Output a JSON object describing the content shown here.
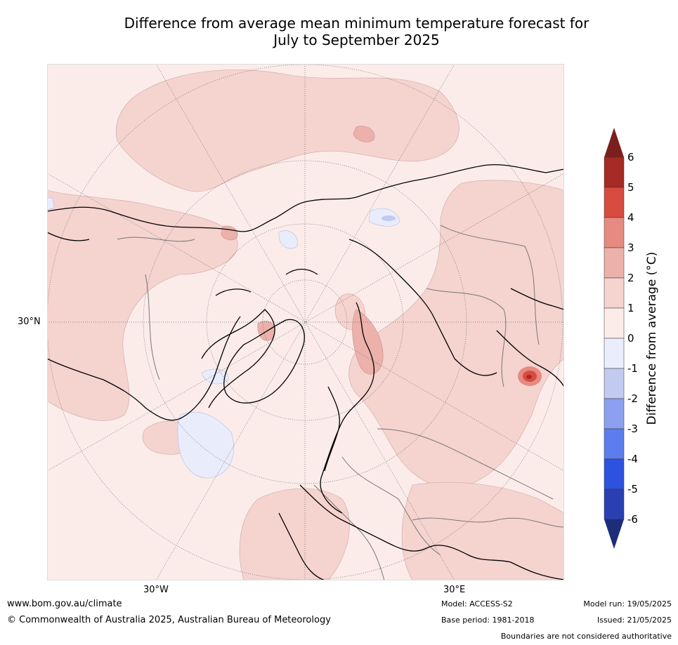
{
  "title": {
    "line1": "Difference from average mean minimum temperature forecast for",
    "line2": "July to September 2025"
  },
  "map": {
    "projection": "north-polar-stereographic",
    "graticule_labels": {
      "lat_30n": "30°N",
      "lon_30w": "30°W",
      "lon_30e": "30°E"
    }
  },
  "colorbar": {
    "label": "Difference from average (°C)",
    "ticks": [
      "6",
      "5",
      "4",
      "3",
      "2",
      "1",
      "0",
      "-1",
      "-2",
      "-3",
      "-4",
      "-5",
      "-6"
    ],
    "colors_top_to_bottom": [
      "#a62a25",
      "#d84b40",
      "#e68a82",
      "#ecb1aa",
      "#f5d3cf",
      "#fbecea",
      "#eaedfb",
      "#c3caf1",
      "#8d9ff0",
      "#5d7cee",
      "#2e52e0",
      "#2a3fb1"
    ],
    "extend_max_color": "#7b1f1c",
    "extend_min_color": "#1e2d7a"
  },
  "footer": {
    "website": "www.bom.gov.au/climate",
    "copyright": "© Commonwealth of Australia 2025, Australian Bureau of Meteorology",
    "model": "Model: ACCESS-S2",
    "base_period": "Base period: 1981-2018",
    "model_run": "Model run: 19/05/2025",
    "issued": "Issued: 21/05/2025",
    "disclaimer": "Boundaries are not considered authoritative"
  }
}
